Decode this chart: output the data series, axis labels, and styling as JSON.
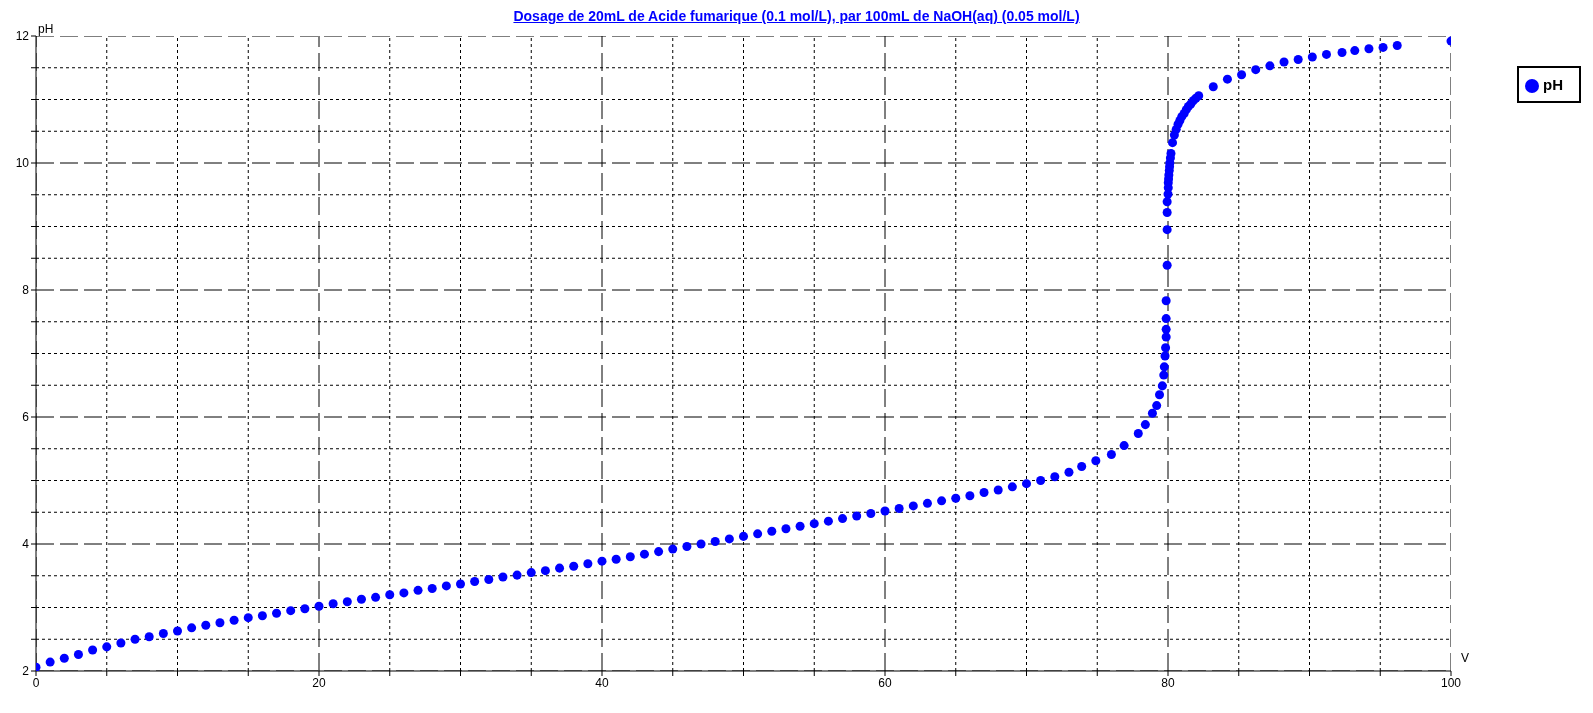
{
  "chart_data": {
    "type": "scatter",
    "title": "Dosage de 20mL de Acide fumarique (0.1 mol/L),  par 100mL  de NaOH(aq) (0.05 mol/L)",
    "xlabel": "V",
    "ylabel": "pH",
    "x": [
      0,
      1,
      2,
      3,
      4,
      5,
      6,
      7,
      8,
      9,
      10,
      11,
      12,
      13,
      14,
      15,
      16,
      17,
      18,
      19,
      20,
      21,
      22,
      23,
      24,
      25,
      26,
      27,
      28,
      29,
      30,
      31,
      32,
      33,
      34,
      35,
      36,
      37,
      38,
      39,
      40,
      41,
      42,
      43,
      44,
      45,
      46,
      47,
      48,
      49,
      50,
      51,
      52,
      53,
      54,
      55,
      56,
      57,
      58,
      59,
      60,
      61,
      62,
      63,
      64,
      65,
      66,
      67,
      68,
      69,
      70,
      71,
      72,
      73,
      73.9,
      74.9,
      76,
      76.9,
      77.9,
      78.4,
      78.9,
      79.2,
      79.4,
      79.6,
      79.7,
      79.74,
      79.79,
      79.83,
      79.87,
      79.87,
      79.87,
      79.87,
      79.94,
      79.94,
      79.94,
      79.94,
      80,
      80.02,
      80.02,
      80.04,
      80.06,
      80.09,
      80.11,
      80.13,
      80.17,
      80.21,
      80.32,
      80.45,
      80.58,
      80.71,
      80.84,
      80.97,
      81.14,
      81.29,
      81.44,
      81.61,
      81.78,
      81.97,
      82.17,
      83.2,
      84.2,
      85.2,
      86.2,
      87.2,
      88.2,
      89.2,
      90.2,
      91.2,
      92.3,
      93.2,
      94.2,
      95.2,
      96.2,
      100
    ],
    "series": [
      {
        "name": "pH",
        "color": "#0000ff",
        "values": [
          2.06,
          2.14,
          2.2,
          2.26,
          2.33,
          2.38,
          2.44,
          2.5,
          2.54,
          2.59,
          2.63,
          2.68,
          2.72,
          2.76,
          2.8,
          2.84,
          2.87,
          2.91,
          2.95,
          2.98,
          3.02,
          3.06,
          3.09,
          3.13,
          3.16,
          3.2,
          3.23,
          3.27,
          3.3,
          3.34,
          3.37,
          3.41,
          3.44,
          3.48,
          3.51,
          3.55,
          3.58,
          3.62,
          3.65,
          3.69,
          3.73,
          3.76,
          3.8,
          3.84,
          3.88,
          3.92,
          3.96,
          4,
          4.04,
          4.08,
          4.12,
          4.16,
          4.2,
          4.24,
          4.28,
          4.32,
          4.36,
          4.4,
          4.44,
          4.48,
          4.52,
          4.56,
          4.6,
          4.64,
          4.68,
          4.72,
          4.76,
          4.81,
          4.85,
          4.9,
          4.95,
          5,
          5.06,
          5.13,
          5.22,
          5.31,
          5.41,
          5.55,
          5.74,
          5.88,
          6.06,
          6.18,
          6.35,
          6.49,
          6.66,
          6.79,
          6.96,
          7.09,
          7.26,
          7.38,
          7.55,
          7.83,
          8.39,
          8.95,
          9.22,
          9.39,
          9.51,
          9.61,
          9.69,
          9.75,
          9.81,
          9.88,
          9.94,
          10,
          10.08,
          10.15,
          10.32,
          10.44,
          10.53,
          10.61,
          10.67,
          10.73,
          10.78,
          10.84,
          10.89,
          10.93,
          10.98,
          11.02,
          11.06,
          11.2,
          11.32,
          11.39,
          11.47,
          11.53,
          11.59,
          11.63,
          11.67,
          11.71,
          11.74,
          11.77,
          11.8,
          11.82,
          11.85,
          11.92
        ]
      }
    ],
    "xlim": [
      0,
      100
    ],
    "ylim": [
      2,
      12
    ],
    "xticks": [
      0,
      {
        "value": 5,
        "label": null
      },
      {
        "value": 10,
        "label": null
      },
      {
        "value": 15,
        "label": null
      },
      20,
      {
        "value": 25,
        "label": null
      },
      {
        "value": 30,
        "label": null
      },
      {
        "value": 35,
        "label": null
      },
      40,
      {
        "value": 45,
        "label": null
      },
      {
        "value": 50,
        "label": null
      },
      {
        "value": 55,
        "label": null
      },
      60,
      {
        "value": 65,
        "label": null
      },
      {
        "value": 70,
        "label": null
      },
      {
        "value": 75,
        "label": null
      },
      80,
      {
        "value": 85,
        "label": null
      },
      {
        "value": 90,
        "label": null
      },
      {
        "value": 95,
        "label": null
      },
      100
    ],
    "yticks": [
      2,
      {
        "value": 2.5,
        "label": null
      },
      {
        "value": 3,
        "label": null
      },
      {
        "value": 3.5,
        "label": null
      },
      4,
      {
        "value": 4.5,
        "label": null
      },
      {
        "value": 5,
        "label": null
      },
      {
        "value": 5.5,
        "label": null
      },
      6,
      {
        "value": 6.5,
        "label": null
      },
      {
        "value": 7,
        "label": null
      },
      {
        "value": 7.5,
        "label": null
      },
      8,
      {
        "value": 8.5,
        "label": null
      },
      {
        "value": 9,
        "label": null
      },
      {
        "value": 9.5,
        "label": null
      },
      10,
      {
        "value": 10.5,
        "label": null
      },
      {
        "value": 11,
        "label": null
      },
      {
        "value": 11.5,
        "label": null
      },
      12
    ],
    "grid": true,
    "legend": "top right",
    "marker": "circle"
  }
}
